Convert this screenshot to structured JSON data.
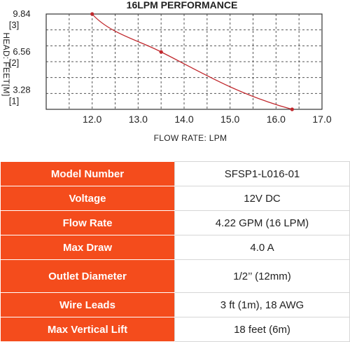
{
  "chart_data": {
    "type": "line",
    "title": "16LPM PERFORMANCE",
    "xlabel": "FLOW RATE: LPM",
    "ylabel": "HEAD: FEET[M]",
    "xlim": [
      11.0,
      17.0
    ],
    "ylim": [
      1.6,
      9.84
    ],
    "grid": true,
    "x_ticks": [
      "12.0",
      "13.0",
      "14.0",
      "15.0",
      "16.0",
      "17.0"
    ],
    "y_ticks": [
      {
        "value": 9.84,
        "feet": "9.84",
        "meters": "[3]"
      },
      {
        "value": 6.56,
        "feet": "6.56",
        "meters": "[2]"
      },
      {
        "value": 3.28,
        "feet": "3.28",
        "meters": "[1]"
      }
    ],
    "series": [
      {
        "color": "#c0282d",
        "points": [
          {
            "x": 12.0,
            "y": 9.84
          },
          {
            "x": 13.5,
            "y": 6.56
          },
          {
            "x": 16.35,
            "y": 1.6
          }
        ]
      }
    ]
  },
  "specs": [
    {
      "label": "Model Number",
      "value": "SFSP1-L016-01"
    },
    {
      "label": "Voltage",
      "value": "12V DC"
    },
    {
      "label": "Flow Rate",
      "value": "4.22 GPM (16 LPM)"
    },
    {
      "label": "Max Draw",
      "value": "4.0 A"
    },
    {
      "label": "Outlet Diameter",
      "value": "1/2’’ (12mm)"
    },
    {
      "label": "Wire Leads",
      "value": "3 ft (1m), 18 AWG"
    },
    {
      "label": "Max Vertical Lift",
      "value": "18 feet (6m)"
    }
  ]
}
